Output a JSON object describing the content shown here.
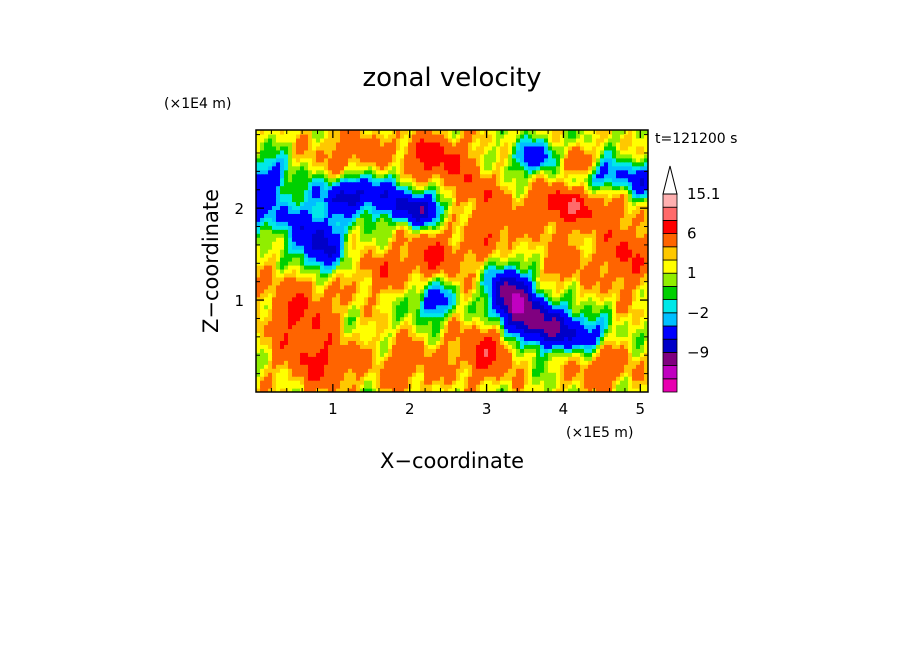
{
  "chart_data": {
    "type": "heatmap",
    "title": "zonal velocity",
    "xlabel": "X−coordinate",
    "ylabel": "Z−coordinate",
    "x_unit": "(×1E5 m)",
    "y_unit": "(×1E4 m)",
    "time_label": "t=121200 s",
    "xlim": [
      0,
      5.1
    ],
    "ylim": [
      0,
      2.85
    ],
    "x_ticks": [
      1,
      2,
      3,
      4,
      5
    ],
    "x_tick_labels": [
      "1",
      "2",
      "3",
      "4",
      "5"
    ],
    "y_ticks": [
      1,
      2
    ],
    "y_tick_labels": [
      "1",
      "2"
    ],
    "colorbar": {
      "levels": [
        -15,
        -12,
        -9,
        -6,
        -3,
        -2,
        -1,
        0,
        1,
        2,
        3,
        6,
        9,
        12,
        15.1
      ],
      "colors": [
        "#e800b0",
        "#c000c0",
        "#800080",
        "#0000c8",
        "#0000ff",
        "#00bfff",
        "#00e8e8",
        "#00d000",
        "#90ee00",
        "#ffff00",
        "#ffc800",
        "#ff6400",
        "#ff0000",
        "#ff6a6a",
        "#ffb0b0",
        "#ffffff"
      ],
      "labels": [
        {
          "value": 15.1,
          "text": "15.1"
        },
        {
          "value": 6,
          "text": "6"
        },
        {
          "value": 1,
          "text": "1"
        },
        {
          "value": -2,
          "text": "−2"
        },
        {
          "value": -9,
          "text": "−9"
        }
      ]
    },
    "features": [
      {
        "x": 0.8,
        "z": 1.6,
        "value": -9,
        "sx": 0.35,
        "sz": 0.35
      },
      {
        "x": 1.3,
        "z": 2.15,
        "value": -8,
        "sx": 0.5,
        "sz": 0.2
      },
      {
        "x": 2.1,
        "z": 2.0,
        "value": -9,
        "sx": 0.35,
        "sz": 0.18
      },
      {
        "x": 0.15,
        "z": 2.3,
        "value": -6,
        "sx": 0.3,
        "sz": 0.25
      },
      {
        "x": 0.2,
        "z": 1.9,
        "value": -4,
        "sx": 0.4,
        "sz": 0.2
      },
      {
        "x": 3.3,
        "z": 1.1,
        "value": -10,
        "sx": 0.25,
        "sz": 0.3
      },
      {
        "x": 3.8,
        "z": 0.7,
        "value": -9,
        "sx": 0.4,
        "sz": 0.22
      },
      {
        "x": 3.5,
        "z": 0.9,
        "value": -7,
        "sx": 0.35,
        "sz": 0.25
      },
      {
        "x": 4.3,
        "z": 0.6,
        "value": -5,
        "sx": 0.3,
        "sz": 0.2
      },
      {
        "x": 3.75,
        "z": 2.55,
        "value": -7,
        "sx": 0.4,
        "sz": 0.18
      },
      {
        "x": 4.4,
        "z": 2.35,
        "value": -6,
        "sx": 0.4,
        "sz": 0.2
      },
      {
        "x": 5.0,
        "z": 2.3,
        "value": -5,
        "sx": 0.25,
        "sz": 0.2
      },
      {
        "x": 2.3,
        "z": 1.0,
        "value": -6,
        "sx": 0.25,
        "sz": 0.2
      },
      {
        "x": 1.8,
        "z": 2.5,
        "value": -3,
        "sx": 0.4,
        "sz": 0.25
      },
      {
        "x": 2.25,
        "z": 2.55,
        "value": 7,
        "sx": 0.5,
        "sz": 0.25
      },
      {
        "x": 1.3,
        "z": 2.6,
        "value": 4,
        "sx": 0.5,
        "sz": 0.25
      },
      {
        "x": 4.1,
        "z": 2.05,
        "value": 7,
        "sx": 0.5,
        "sz": 0.25
      },
      {
        "x": 4.1,
        "z": 2.5,
        "value": 8,
        "sx": 0.3,
        "sz": 0.18
      },
      {
        "x": 4.8,
        "z": 1.5,
        "value": 5,
        "sx": 0.3,
        "sz": 0.4
      },
      {
        "x": 0.6,
        "z": 0.9,
        "value": 5,
        "sx": 0.45,
        "sz": 0.6
      },
      {
        "x": 0.9,
        "z": 0.3,
        "value": 4,
        "sx": 0.4,
        "sz": 0.25
      },
      {
        "x": 3.0,
        "z": 0.45,
        "value": 6,
        "sx": 0.35,
        "sz": 0.3
      },
      {
        "x": 2.3,
        "z": 1.5,
        "value": 5,
        "sx": 0.4,
        "sz": 0.25
      },
      {
        "x": 3.1,
        "z": 1.8,
        "value": 4,
        "sx": 0.35,
        "sz": 0.35
      },
      {
        "x": 2.0,
        "z": 0.3,
        "value": 3,
        "sx": 0.5,
        "sz": 0.3
      },
      {
        "x": 4.5,
        "z": 0.3,
        "value": 4,
        "sx": 0.4,
        "sz": 0.25
      },
      {
        "x": 1.6,
        "z": 1.3,
        "value": 3,
        "sx": 0.4,
        "sz": 0.25
      },
      {
        "x": 4.0,
        "z": 1.4,
        "value": 3,
        "sx": 0.4,
        "sz": 0.3
      },
      {
        "x": 2.8,
        "z": 2.2,
        "value": 3,
        "sx": 0.3,
        "sz": 0.25
      }
    ]
  }
}
